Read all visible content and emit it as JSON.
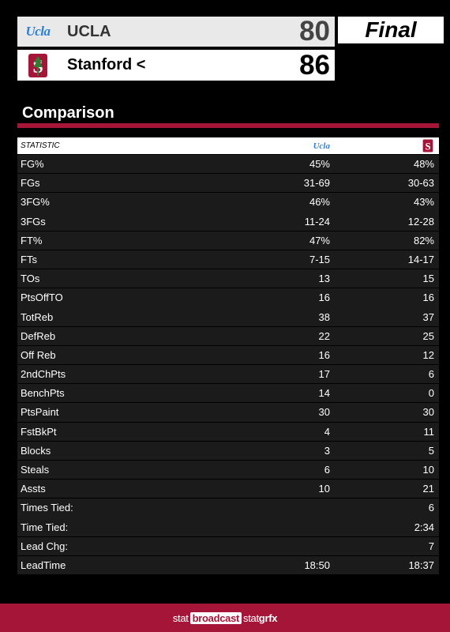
{
  "away": {
    "name": "UCLA",
    "logo_text": "Ucla",
    "score": "80",
    "logo_icon": "ucla-script-logo"
  },
  "home": {
    "name": "Stanford <",
    "score": "86",
    "logo_icon": "stanford-tree-logo"
  },
  "status": "Final",
  "section_title": "Comparison",
  "table": {
    "header_statistic": "STATISTIC",
    "header_away_logo_text": "Ucla",
    "rows": [
      {
        "stat": "FG%",
        "away": "45%",
        "home": "48%"
      },
      {
        "stat": "FGs",
        "away": "31-69",
        "home": "30-63"
      },
      {
        "stat": "3FG%",
        "away": "46%",
        "home": "43%"
      },
      {
        "stat": "3FGs",
        "away": "11-24",
        "home": "12-28"
      },
      {
        "stat": "FT%",
        "away": "47%",
        "home": "82%"
      },
      {
        "stat": "FTs",
        "away": "7-15",
        "home": "14-17"
      },
      {
        "stat": "TOs",
        "away": "13",
        "home": "15"
      },
      {
        "stat": "PtsOffTO",
        "away": "16",
        "home": "16"
      },
      {
        "stat": "TotReb",
        "away": "38",
        "home": "37"
      },
      {
        "stat": "DefReb",
        "away": "22",
        "home": "25"
      },
      {
        "stat": "Off Reb",
        "away": "16",
        "home": "12"
      },
      {
        "stat": "2ndChPts",
        "away": "17",
        "home": "6"
      },
      {
        "stat": "BenchPts",
        "away": "14",
        "home": "0"
      },
      {
        "stat": "PtsPaint",
        "away": "30",
        "home": "30"
      },
      {
        "stat": "FstBkPt",
        "away": "4",
        "home": "11"
      },
      {
        "stat": "Blocks",
        "away": "3",
        "home": "5"
      },
      {
        "stat": "Steals",
        "away": "6",
        "home": "10"
      },
      {
        "stat": "Assts",
        "away": "10",
        "home": "21"
      },
      {
        "stat": "Times Tied:",
        "away": "",
        "home": "6"
      },
      {
        "stat": "Time Tied:",
        "away": "",
        "home": "2:34"
      },
      {
        "stat": "Lead Chg:",
        "away": "",
        "home": "7"
      },
      {
        "stat": "LeadTime",
        "away": "18:50",
        "home": "18:37"
      }
    ]
  },
  "footer": {
    "part1": "stat",
    "part2": "broadcast",
    "part3": "stat",
    "part4": "grfx"
  },
  "colors": {
    "accent": "#a51538",
    "ucla_blue": "#2f7fd6",
    "row_bg": "#1b1b1b"
  }
}
